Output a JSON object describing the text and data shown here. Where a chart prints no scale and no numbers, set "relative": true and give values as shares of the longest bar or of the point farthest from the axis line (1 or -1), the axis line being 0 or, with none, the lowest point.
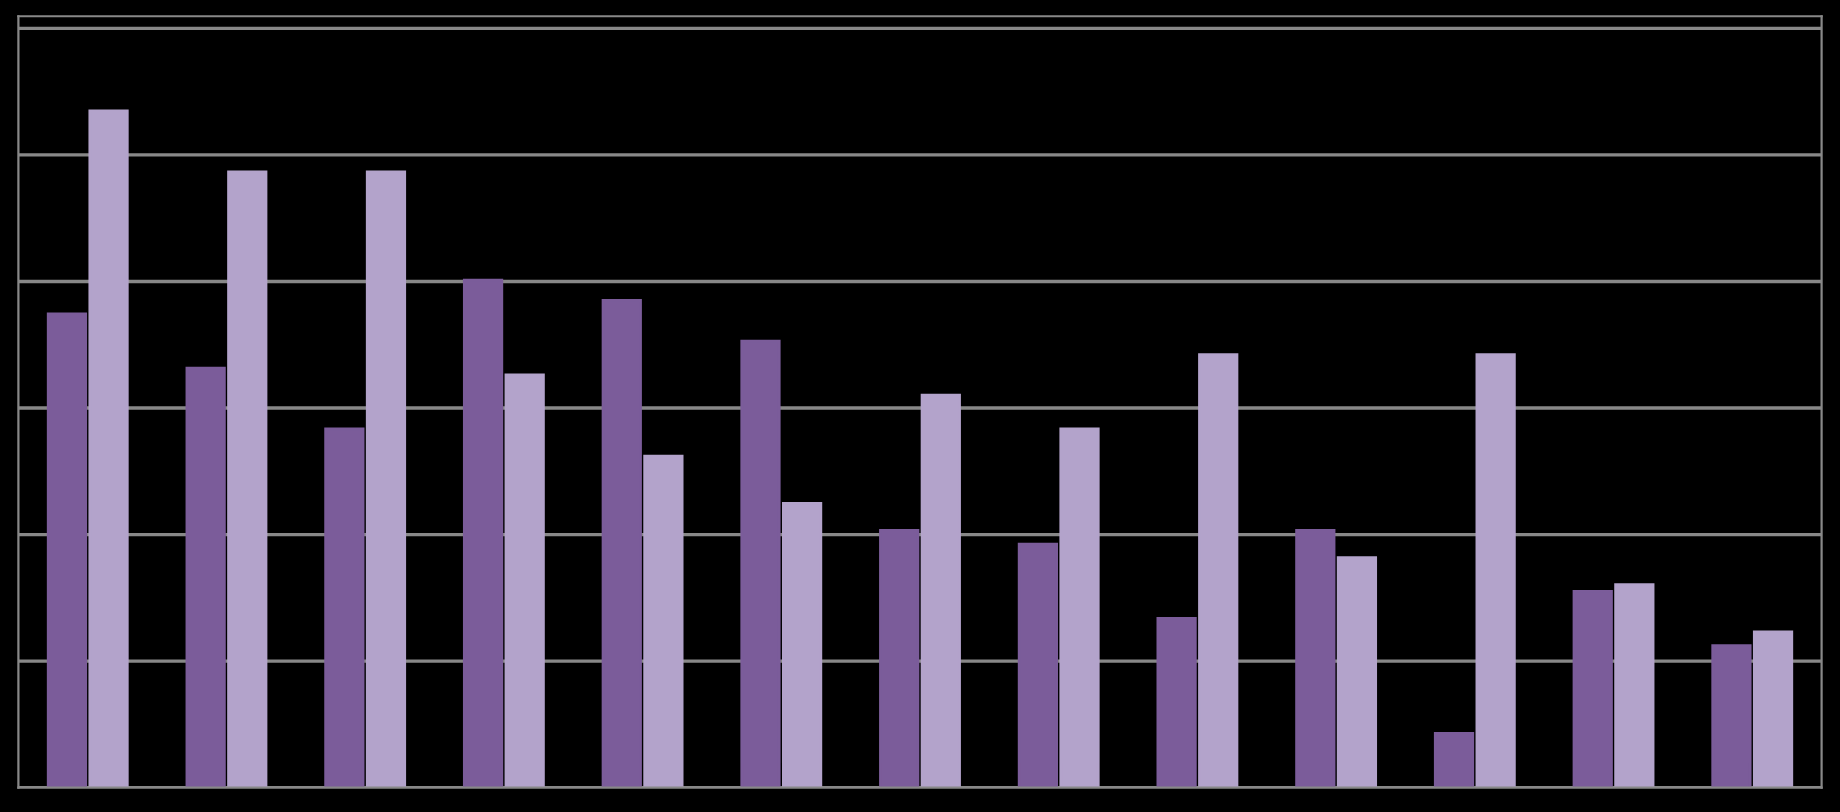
{
  "chart_data": {
    "type": "bar",
    "relative": true,
    "grid": "y",
    "legend": false,
    "categories": [
      null,
      null,
      null,
      null,
      null,
      null,
      null,
      null,
      null,
      null,
      null,
      null,
      null
    ],
    "series": [
      {
        "color": "#7b5c9a",
        "values": [
          0.7,
          0.62,
          0.53,
          0.75,
          0.72,
          0.66,
          0.38,
          0.36,
          0.25,
          0.38,
          0.08,
          0.29,
          0.21
        ]
      },
      {
        "color": "#b3a3cb",
        "values": [
          1,
          0.91,
          0.91,
          0.61,
          0.49,
          0.42,
          0.58,
          0.53,
          0.64,
          0.34,
          0.64,
          0.3,
          0.23
        ]
      }
    ]
  }
}
